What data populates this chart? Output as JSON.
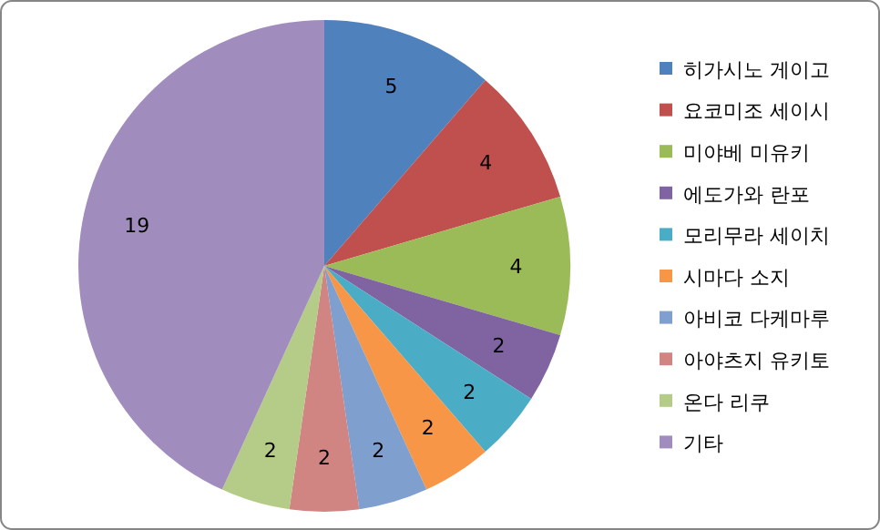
{
  "chart_data": {
    "type": "pie",
    "categories": [
      "히가시노 게이고",
      "요코미조 세이시",
      "미야베 미유키",
      "에도가와 란포",
      "모리무라 세이치",
      "시마다 소지",
      "아비코 다케마루",
      "아야츠지 유키토",
      "온다 리쿠",
      "기타"
    ],
    "values": [
      5,
      4,
      4,
      2,
      2,
      2,
      2,
      2,
      2,
      19
    ],
    "colors": [
      "#4f81bd",
      "#c0504d",
      "#9bbb59",
      "#8064a2",
      "#4bacc6",
      "#f79646",
      "#7f9fcf",
      "#d08583",
      "#b5cc88",
      "#a08dbe"
    ],
    "data_labels": true,
    "legend": "right"
  }
}
